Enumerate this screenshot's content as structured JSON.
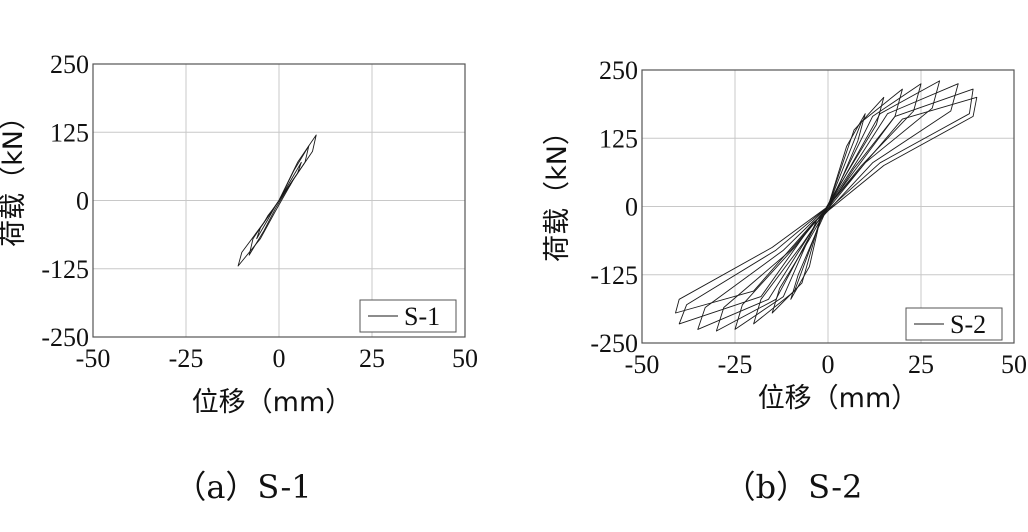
{
  "colors": {
    "background": "#ffffff",
    "grid": "#c8c8c8",
    "frame": "#555555",
    "curve": "#1a1a1a"
  },
  "chart_data": [
    {
      "type": "line",
      "caption": "（a）S-1",
      "xlabel": "位移（mm）",
      "ylabel": "荷载（kN）",
      "xlim": [
        -50,
        50
      ],
      "ylim": [
        -250,
        250
      ],
      "x_ticks": [
        -50,
        -25,
        0,
        25,
        50
      ],
      "y_ticks": [
        -250,
        -125,
        0,
        125,
        250
      ],
      "grid": true,
      "legend_position": "bottom-right",
      "series": [
        {
          "name": "S-1",
          "cycles": [
            {
              "x": [
                0,
                2,
                4,
                3,
                1,
                -1,
                -2,
                -4,
                -3,
                -1,
                0
              ],
              "y": [
                0,
                20,
                40,
                28,
                10,
                -10,
                -20,
                -40,
                -28,
                -10,
                0
              ]
            },
            {
              "x": [
                0,
                3,
                6,
                5,
                2,
                -1,
                -3,
                -6,
                -5,
                -2,
                0
              ],
              "y": [
                0,
                35,
                70,
                50,
                20,
                -10,
                -35,
                -70,
                -50,
                -20,
                0
              ]
            },
            {
              "x": [
                0,
                4,
                8,
                7,
                3,
                -1,
                -4,
                -8,
                -7,
                -3,
                0
              ],
              "y": [
                0,
                55,
                100,
                70,
                30,
                -15,
                -55,
                -100,
                -70,
                -30,
                0
              ]
            },
            {
              "x": [
                0,
                5,
                10,
                9,
                4,
                -1,
                -5,
                -11,
                -10,
                -4,
                0
              ],
              "y": [
                0,
                70,
                120,
                90,
                40,
                -20,
                -70,
                -120,
                -95,
                -40,
                0
              ]
            }
          ]
        }
      ]
    },
    {
      "type": "line",
      "caption": "（b）S-2",
      "xlabel": "位移（mm）",
      "ylabel": "荷载（kN）",
      "xlim": [
        -50,
        50
      ],
      "ylim": [
        -250,
        250
      ],
      "x_ticks": [
        -50,
        -25,
        0,
        25,
        50
      ],
      "y_ticks": [
        -250,
        -125,
        0,
        125,
        250
      ],
      "grid": true,
      "legend_position": "bottom-right",
      "series": [
        {
          "name": "S-2",
          "cycles": [
            {
              "x": [
                0,
                5,
                10,
                8,
                3,
                -2,
                -5,
                -10,
                -8,
                -3,
                0
              ],
              "y": [
                0,
                110,
                170,
                120,
                40,
                -20,
                -110,
                -170,
                -125,
                -45,
                0
              ]
            },
            {
              "x": [
                0,
                7,
                15,
                13,
                5,
                -2,
                -7,
                -15,
                -13,
                -5,
                0
              ],
              "y": [
                0,
                140,
                200,
                150,
                60,
                -20,
                -140,
                -195,
                -150,
                -60,
                0
              ]
            },
            {
              "x": [
                0,
                9,
                20,
                18,
                7,
                -2,
                -9,
                -20,
                -18,
                -7,
                0
              ],
              "y": [
                0,
                155,
                215,
                165,
                70,
                -25,
                -155,
                -215,
                -170,
                -70,
                0
              ]
            },
            {
              "x": [
                0,
                12,
                25,
                23,
                9,
                -3,
                -12,
                -25,
                -23,
                -9,
                0
              ],
              "y": [
                0,
                165,
                225,
                175,
                75,
                -25,
                -165,
                -225,
                -180,
                -75,
                0
              ]
            },
            {
              "x": [
                0,
                14,
                30,
                28,
                10,
                -3,
                -14,
                -30,
                -28,
                -10,
                0
              ],
              "y": [
                0,
                170,
                230,
                180,
                80,
                -30,
                -170,
                -228,
                -185,
                -80,
                0
              ]
            },
            {
              "x": [
                0,
                16,
                35,
                33,
                12,
                -3,
                -16,
                -35,
                -33,
                -12,
                0
              ],
              "y": [
                0,
                170,
                225,
                175,
                80,
                -30,
                -170,
                -225,
                -185,
                -80,
                0
              ]
            },
            {
              "x": [
                0,
                18,
                39,
                38,
                14,
                -4,
                -18,
                -40,
                -38,
                -14,
                0
              ],
              "y": [
                0,
                165,
                215,
                170,
                80,
                -30,
                -165,
                -215,
                -180,
                -80,
                0
              ]
            },
            {
              "x": [
                0,
                20,
                40,
                39,
                15,
                -4,
                -20,
                -41,
                -40,
                -15,
                0
              ],
              "y": [
                0,
                160,
                200,
                165,
                75,
                -30,
                -155,
                -195,
                -170,
                -75,
                0
              ]
            }
          ]
        }
      ]
    }
  ]
}
